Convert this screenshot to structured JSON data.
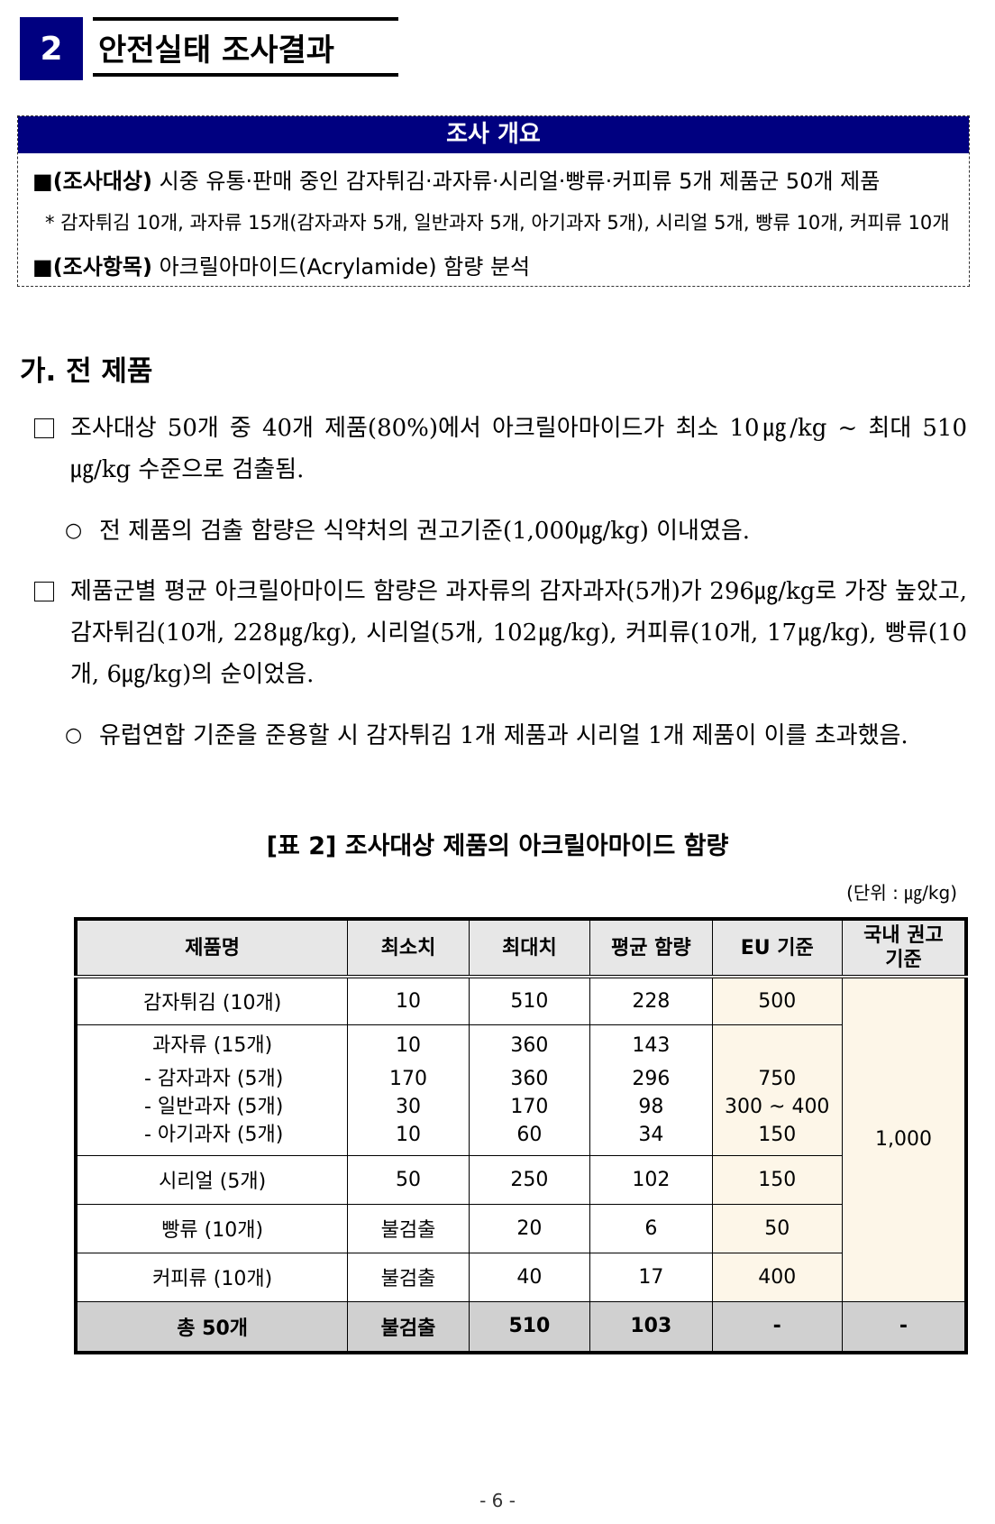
{
  "section": {
    "number": "2",
    "title": "안전실태 조사결과"
  },
  "summary": {
    "heading": "조사 개요",
    "target_label": "(조사대상)",
    "target_text": " 시중 유통·판매 중인 감자튀김·과자류·시리얼·빵류·커피류 5개 제품군 50개 제품",
    "note": "* 감자튀김 10개, 과자류 15개(감자과자 5개, 일반과자 5개, 아기과자 5개), 시리얼 5개, 빵류 10개, 커피류 10개",
    "item_label": "(조사항목)",
    "item_text": " 아크릴아마이드(Acrylamide) 함량 분석"
  },
  "subsection_title": "가. 전 제품",
  "paragraphs": [
    {
      "type": "box",
      "text": "조사대상 50개 중 40개 제품(80%)에서 아크릴아마이드가 최소 10㎍/kg ~ 최대 510㎍/kg 수준으로 검출됨."
    },
    {
      "type": "circle",
      "text": "전 제품의 검출 함량은 식약처의 권고기준(1,000㎍/kg) 이내였음."
    },
    {
      "type": "box",
      "text": "제품군별 평균 아크릴아마이드 함량은 과자류의 감자과자(5개)가 296㎍/kg로 가장 높았고, 감자튀김(10개, 228㎍/kg), 시리얼(5개, 102㎍/kg), 커피류(10개, 17㎍/kg), 빵류(10개, 6㎍/kg)의 순이었음."
    },
    {
      "type": "circle",
      "text": "유럽연합 기준을 준용할 시 감자튀김 1개 제품과 시리얼 1개 제품이 이를 초과했음."
    }
  ],
  "table": {
    "caption": "[표 2] 조사대상 제품의 아크릴아마이드 함량",
    "unit": "(단위 : ㎍/kg)",
    "headers": [
      "제품명",
      "최소치",
      "최대치",
      "평균 함량",
      "EU 기준",
      "국내 권고기준"
    ],
    "domestic_standard": "1,000",
    "rows": [
      {
        "name": "감자튀김 (10개)",
        "min": "10",
        "max": "510",
        "avg": "228",
        "eu": "500"
      },
      {
        "name": "과자류 (15개)",
        "min": "10",
        "max": "360",
        "avg": "143",
        "eu": "",
        "subs": [
          {
            "name": "- 감자과자 (5개)",
            "min": "170",
            "max": "360",
            "avg": "296",
            "eu": "750"
          },
          {
            "name": "- 일반과자 (5개)",
            "min": "30",
            "max": "170",
            "avg": "98",
            "eu": "300 ~ 400"
          },
          {
            "name": "- 아기과자 (5개)",
            "min": "10",
            "max": "60",
            "avg": "34",
            "eu": "150"
          }
        ]
      },
      {
        "name": "시리얼 (5개)",
        "min": "50",
        "max": "250",
        "avg": "102",
        "eu": "150"
      },
      {
        "name": "빵류 (10개)",
        "min": "불검출",
        "max": "20",
        "avg": "6",
        "eu": "50"
      },
      {
        "name": "커피류 (10개)",
        "min": "불검출",
        "max": "40",
        "avg": "17",
        "eu": "400"
      }
    ],
    "total": {
      "name": "총 50개",
      "min": "불검출",
      "max": "510",
      "avg": "103",
      "eu": "-",
      "domestic": "-"
    }
  },
  "page_number": "- 6 -",
  "colors": {
    "navy": "#000080",
    "beige": "#fdf6e8",
    "header_gray": "#e7e7e7",
    "total_gray": "#d0d0d0"
  }
}
